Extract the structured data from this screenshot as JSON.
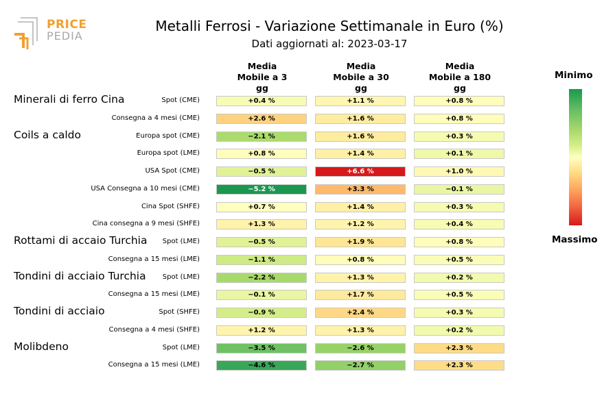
{
  "header": {
    "logo_top": "PRICE",
    "logo_bottom": "PEDIA",
    "title": "Metalli Ferrosi - Variazione Settimanale in Euro (%)",
    "subtitle": "Dati aggiornati al: 2023-03-17"
  },
  "columns": [
    [
      "Media",
      "Mobile a 3",
      "gg"
    ],
    [
      "Media",
      "Mobile a 30",
      "gg"
    ],
    [
      "Media",
      "Mobile a 180",
      "gg"
    ]
  ],
  "legend": {
    "min_label": "Minimo",
    "max_label": "Massimo",
    "colors": [
      "#1a9850",
      "#66bd63",
      "#a6d96a",
      "#d9ef8b",
      "#ffffbf",
      "#fee08b",
      "#fdae61",
      "#f46d43",
      "#d7191c"
    ]
  },
  "chart_data": {
    "type": "heatmap",
    "title": "Metalli Ferrosi - Variazione Settimanale in Euro (%)",
    "unit": "%",
    "color_scale": {
      "min": -5.2,
      "max": 6.6
    },
    "groups": [
      {
        "name": "Minerali di ferro Cina",
        "rows": [
          {
            "label": "Spot (CME)",
            "values": [
              0.4,
              1.1,
              0.8
            ]
          },
          {
            "label": "Consegna a 4 mesi (CME)",
            "values": [
              2.6,
              1.6,
              0.8
            ]
          }
        ]
      },
      {
        "name": "Coils a caldo",
        "rows": [
          {
            "label": "Europa spot (CME)",
            "values": [
              -2.1,
              1.6,
              0.3
            ]
          },
          {
            "label": "Europa spot (LME)",
            "values": [
              0.8,
              1.4,
              0.1
            ]
          },
          {
            "label": "USA Spot (CME)",
            "values": [
              -0.5,
              6.6,
              1.0
            ]
          },
          {
            "label": "USA Consegna a 10 mesi (CME)",
            "values": [
              -5.2,
              3.3,
              -0.1
            ]
          },
          {
            "label": "Cina Spot (SHFE)",
            "values": [
              0.7,
              1.4,
              0.3
            ]
          },
          {
            "label": "Cina consegna a 9 mesi (SHFE)",
            "values": [
              1.3,
              1.2,
              0.4
            ]
          }
        ]
      },
      {
        "name": "Rottami di accaio Turchia",
        "rows": [
          {
            "label": "Spot (LME)",
            "values": [
              -0.5,
              1.9,
              0.8
            ]
          },
          {
            "label": "Consegna a 15 mesi (LME)",
            "values": [
              -1.1,
              0.8,
              0.5
            ]
          }
        ]
      },
      {
        "name": "Tondini di acciaio Turchia",
        "rows": [
          {
            "label": "Spot (LME)",
            "values": [
              -2.2,
              1.3,
              0.2
            ]
          },
          {
            "label": "Consegna a 15 mesi (LME)",
            "values": [
              -0.1,
              1.7,
              0.5
            ]
          }
        ]
      },
      {
        "name": "Tondini di acciaio",
        "rows": [
          {
            "label": "Spot (SHFE)",
            "values": [
              -0.9,
              2.4,
              0.3
            ]
          },
          {
            "label": "Consegna a 4 mesi (SHFE)",
            "values": [
              1.2,
              1.3,
              0.2
            ]
          }
        ]
      },
      {
        "name": "Molibdeno",
        "rows": [
          {
            "label": "Spot (LME)",
            "values": [
              -3.5,
              -2.6,
              2.3
            ]
          },
          {
            "label": "Consegna a 15 mesi (LME)",
            "values": [
              -4.6,
              -2.7,
              2.3
            ]
          }
        ]
      }
    ]
  }
}
